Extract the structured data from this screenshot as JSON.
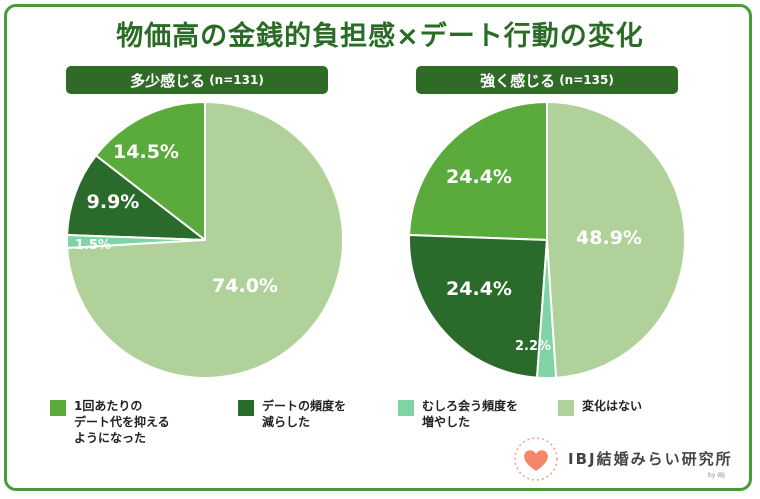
{
  "title": "物価高の金銭的負担感×デート行動の変化",
  "colors": {
    "reduced_cost": "#5aab3c",
    "reduced_freq": "#2a6b2c",
    "increased_freq": "#7fd3a5",
    "no_change": "#b1d19a",
    "header_bg": "#2f6b27",
    "title": "#2a6b26"
  },
  "chart_data": [
    {
      "type": "pie",
      "title": "多少感じる",
      "n_label": "(n=131)",
      "categories": [
        "1回あたりのデート代を抑えるようになった",
        "デートの頻度を減らした",
        "むしろ会う頻度を増やした",
        "変化はない"
      ],
      "values": [
        14.5,
        9.9,
        1.5,
        74.0
      ],
      "labels": [
        "14.5%",
        "9.9%",
        "1.5%",
        "74.0%"
      ]
    },
    {
      "type": "pie",
      "title": "強く感じる",
      "n_label": "(n=135)",
      "categories": [
        "1回あたりのデート代を抑えるようになった",
        "デートの頻度を減らした",
        "むしろ会う頻度を増やした",
        "変化はない"
      ],
      "values": [
        24.4,
        24.4,
        2.2,
        48.9
      ],
      "labels": [
        "24.4%",
        "24.4%",
        "2.2%",
        "48.9%"
      ]
    }
  ],
  "legend": [
    {
      "label": "1回あたりの\nデート代を抑える\nようになった",
      "color_key": "reduced_cost"
    },
    {
      "label": "デートの頻度を\n減らした",
      "color_key": "reduced_freq"
    },
    {
      "label": "むしろ会う頻度を\n増やした",
      "color_key": "increased_freq"
    },
    {
      "label": "変化はない",
      "color_key": "no_change"
    }
  ],
  "logo": {
    "text": "IBJ結婚みらい研究所",
    "sub": "by IBJ",
    "icon": "heart-icon"
  }
}
